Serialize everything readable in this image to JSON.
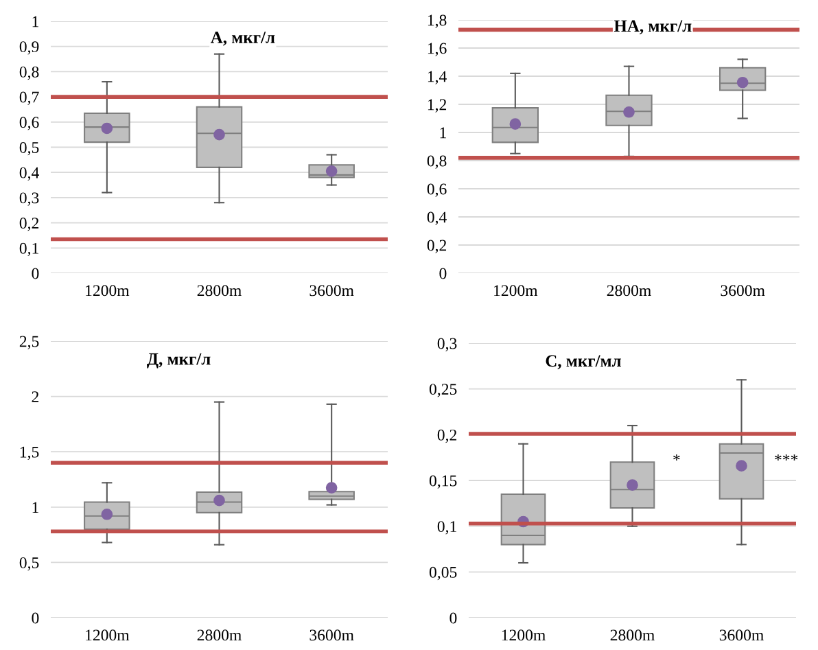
{
  "chart_data": [
    {
      "type": "box",
      "title": "А, мкг/л",
      "categories": [
        "1200m",
        "2800m",
        "3600m"
      ],
      "color": "#bfbfbf",
      "grid": "y",
      "legend": false,
      "boxes": [
        {
          "low": 0.32,
          "q1": 0.52,
          "median": 0.58,
          "q3": 0.635,
          "high": 0.76,
          "mean": 0.575
        },
        {
          "low": 0.28,
          "q1": 0.42,
          "median": 0.555,
          "q3": 0.66,
          "high": 0.87,
          "mean": 0.55
        },
        {
          "low": 0.35,
          "q1": 0.38,
          "median": 0.39,
          "q3": 0.43,
          "high": 0.47,
          "mean": 0.405
        }
      ],
      "ylim": [
        0,
        1
      ],
      "yticks": [
        0,
        {
          "value": 0.1,
          "label": "0,1"
        },
        {
          "value": 0.2,
          "label": "0,2"
        },
        {
          "value": 0.3,
          "label": "0,3"
        },
        {
          "value": 0.4,
          "label": "0,4"
        },
        {
          "value": 0.5,
          "label": "0,5"
        },
        {
          "value": 0.6,
          "label": "0,6"
        },
        {
          "value": 0.7,
          "label": "0,7"
        },
        {
          "value": 0.8,
          "label": "0,8"
        },
        {
          "value": 0.9,
          "label": "0,9"
        },
        1
      ],
      "ref_lines": [
        {
          "axis": "y",
          "value": 0.7,
          "color": "#c0504d"
        },
        {
          "axis": "y",
          "value": 0.135,
          "color": "#c0504d"
        }
      ]
    },
    {
      "type": "box",
      "title": "НА, мкг/л",
      "categories": [
        "1200m",
        "2800m",
        "3600m"
      ],
      "color": "#bfbfbf",
      "grid": "y",
      "legend": false,
      "boxes": [
        {
          "low": 0.85,
          "q1": 0.93,
          "median": 1.035,
          "q3": 1.175,
          "high": 1.42,
          "mean": 1.06
        },
        {
          "low": 0.83,
          "q1": 1.05,
          "median": 1.15,
          "q3": 1.265,
          "high": 1.47,
          "mean": 1.145
        },
        {
          "low": 1.1,
          "q1": 1.3,
          "median": 1.35,
          "q3": 1.46,
          "high": 1.52,
          "mean": 1.355
        }
      ],
      "ylim": [
        0,
        1.8
      ],
      "yticks": [
        0,
        {
          "value": 0.2,
          "label": "0,2"
        },
        {
          "value": 0.4,
          "label": "0,4"
        },
        {
          "value": 0.6,
          "label": "0,6"
        },
        {
          "value": 0.8,
          "label": "0,8"
        },
        1,
        {
          "value": 1.2,
          "label": "1,2"
        },
        {
          "value": 1.4,
          "label": "1,4"
        },
        {
          "value": 1.6,
          "label": "1,6"
        },
        {
          "value": 1.8,
          "label": "1,8"
        }
      ],
      "ref_lines": [
        {
          "axis": "y",
          "value": 1.73,
          "color": "#c0504d"
        },
        {
          "axis": "y",
          "value": 0.82,
          "color": "#c0504d"
        }
      ]
    },
    {
      "type": "box",
      "title": "Д, мкг/л",
      "categories": [
        "1200m",
        "2800m",
        "3600m"
      ],
      "color": "#bfbfbf",
      "grid": "y",
      "legend": false,
      "boxes": [
        {
          "low": 0.68,
          "q1": 0.8,
          "median": 0.92,
          "q3": 1.045,
          "high": 1.22,
          "mean": 0.935
        },
        {
          "low": 0.66,
          "q1": 0.95,
          "median": 1.045,
          "q3": 1.135,
          "high": 1.95,
          "mean": 1.06
        },
        {
          "low": 1.02,
          "q1": 1.07,
          "median": 1.1,
          "q3": 1.14,
          "high": 1.93,
          "mean": 1.175
        }
      ],
      "ylim": [
        0,
        2.5
      ],
      "yticks": [
        0,
        {
          "value": 0.5,
          "label": "0,5"
        },
        1,
        {
          "value": 1.5,
          "label": "1,5"
        },
        2,
        {
          "value": 2.5,
          "label": "2,5"
        }
      ],
      "ref_lines": [
        {
          "axis": "y",
          "value": 1.4,
          "color": "#c0504d"
        },
        {
          "axis": "y",
          "value": 0.78,
          "color": "#c0504d"
        }
      ]
    },
    {
      "type": "box",
      "title": "С, мкг/мл",
      "categories": [
        "1200m",
        "2800m",
        "3600m"
      ],
      "color": "#bfbfbf",
      "grid": "y",
      "legend": false,
      "boxes": [
        {
          "low": 0.06,
          "q1": 0.08,
          "median": 0.09,
          "q3": 0.135,
          "high": 0.19,
          "mean": 0.105
        },
        {
          "low": 0.1,
          "q1": 0.12,
          "median": 0.14,
          "q3": 0.17,
          "high": 0.21,
          "mean": 0.145
        },
        {
          "low": 0.08,
          "q1": 0.13,
          "median": 0.18,
          "q3": 0.19,
          "high": 0.26,
          "mean": 0.166
        }
      ],
      "ylim": [
        0,
        0.3
      ],
      "yticks": [
        0,
        {
          "value": 0.05,
          "label": "0,05"
        },
        {
          "value": 0.1,
          "label": "0,1"
        },
        {
          "value": 0.15,
          "label": "0,15"
        },
        {
          "value": 0.2,
          "label": "0,2"
        },
        {
          "value": 0.25,
          "label": "0,25"
        },
        {
          "value": 0.3,
          "label": "0,3"
        }
      ],
      "ref_lines": [
        {
          "axis": "y",
          "value": 0.201,
          "color": "#c0504d"
        },
        {
          "axis": "y",
          "value": 0.103,
          "color": "#c0504d"
        }
      ],
      "annotations": [
        "*",
        "***"
      ]
    }
  ]
}
